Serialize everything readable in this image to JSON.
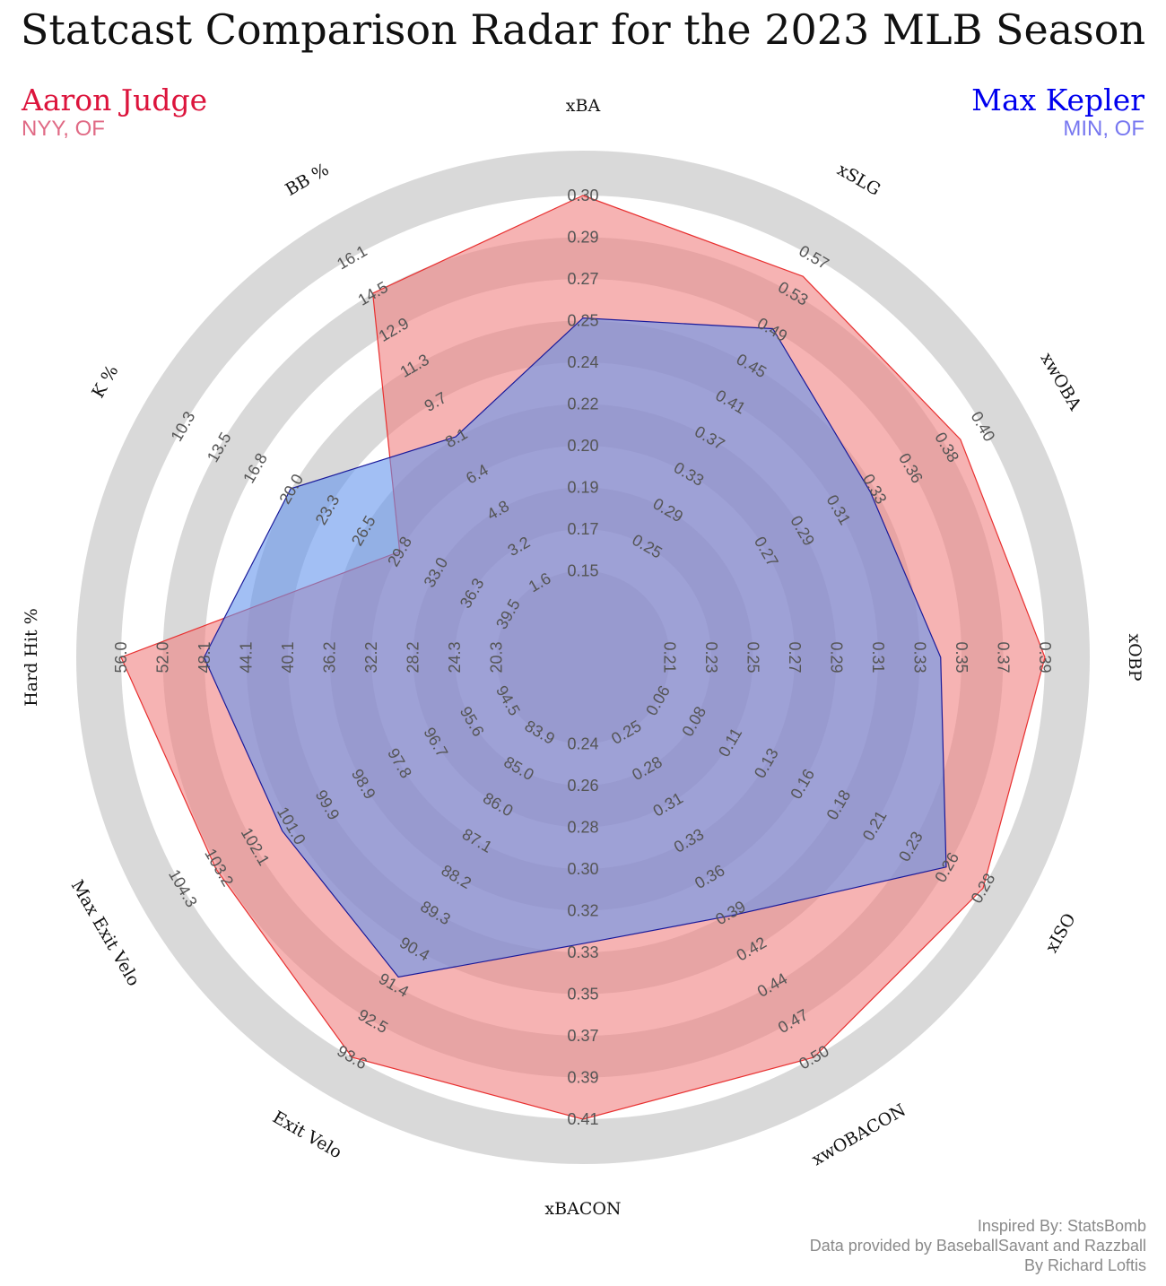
{
  "title": "Statcast Comparison Radar for the 2023 MLB Season",
  "players": {
    "left": {
      "name": "Aaron Judge",
      "team": "NYY, OF",
      "color": "#dc143c",
      "fill": "#f08080"
    },
    "right": {
      "name": "Max Kepler",
      "team": "MIN, OF",
      "color": "#0000ee",
      "fill": "#6495ed"
    }
  },
  "credits": [
    "Inspired By: StatsBomb",
    "Data provided by BaseballSavant and Razzball",
    "By Richard Loftis"
  ],
  "chart_data": {
    "type": "radar",
    "title": "Statcast Comparison Radar for the 2023 MLB Season",
    "axes": [
      {
        "name": "xBA",
        "ticks": [
          "0.15",
          "0.17",
          "0.19",
          "0.20",
          "0.22",
          "0.24",
          "0.25",
          "0.27",
          "0.29",
          "0.30"
        ],
        "range": [
          0.14,
          0.3
        ]
      },
      {
        "name": "xSLG",
        "ticks": [
          "0.25",
          "0.29",
          "0.33",
          "0.37",
          "0.41",
          "0.45",
          "0.49",
          "0.53",
          "0.57"
        ],
        "range": [
          0.21,
          0.59
        ]
      },
      {
        "name": "xwOBA",
        "ticks": [
          "0.27",
          "0.29",
          "0.31",
          "0.33",
          "0.36",
          "0.38",
          "0.40"
        ],
        "range": [
          0.25,
          0.41
        ]
      },
      {
        "name": "xOBP",
        "ticks": [
          "0.21",
          "0.23",
          "0.25",
          "0.27",
          "0.29",
          "0.31",
          "0.33",
          "0.35",
          "0.37",
          "0.39"
        ],
        "range": [
          0.19,
          0.39
        ]
      },
      {
        "name": "xISO",
        "ticks": [
          "0.06",
          "0.08",
          "0.11",
          "0.13",
          "0.16",
          "0.18",
          "0.21",
          "0.23",
          "0.26",
          "0.28"
        ],
        "range": [
          0.035,
          0.28
        ]
      },
      {
        "name": "xwOBACON",
        "ticks": [
          "0.25",
          "0.28",
          "0.31",
          "0.33",
          "0.36",
          "0.39",
          "0.42",
          "0.44",
          "0.47",
          "0.50"
        ],
        "range": [
          0.22,
          0.5
        ]
      },
      {
        "name": "xBACON",
        "ticks": [
          "0.24",
          "0.26",
          "0.28",
          "0.30",
          "0.32",
          "0.33",
          "0.35",
          "0.37",
          "0.39",
          "0.41"
        ],
        "range": [
          0.22,
          0.41
        ]
      },
      {
        "name": "Exit Velo",
        "ticks": [
          "83.9",
          "85.0",
          "86.0",
          "87.1",
          "88.2",
          "89.3",
          "90.4",
          "91.4",
          "92.5",
          "93.6"
        ],
        "range": [
          82.8,
          93.6
        ]
      },
      {
        "name": "Max Exit Velo",
        "ticks": [
          "94.5",
          "95.6",
          "96.7",
          "97.8",
          "98.9",
          "99.9",
          "101.0",
          "102.1",
          "103.2",
          "104.3"
        ],
        "range": [
          93.4,
          105.4
        ]
      },
      {
        "name": "Hard Hit %",
        "ticks": [
          "20.3",
          "24.3",
          "28.2",
          "32.2",
          "36.2",
          "40.1",
          "44.1",
          "48.1",
          "52.0",
          "56.0"
        ],
        "range": [
          16.3,
          56.0
        ]
      },
      {
        "name": "K %",
        "ticks": [
          "39.5",
          "36.3",
          "33.0",
          "29.8",
          "26.5",
          "23.3",
          "20.0",
          "16.8",
          "13.5",
          "10.3"
        ],
        "range": [
          42.8,
          10.3
        ]
      },
      {
        "name": "BB %",
        "ticks": [
          "1.6",
          "3.2",
          "4.8",
          "6.4",
          "8.1",
          "9.7",
          "11.3",
          "12.9",
          "14.5",
          "16.1"
        ],
        "range": [
          0.0,
          16.1
        ]
      }
    ],
    "series": [
      {
        "name": "Aaron Judge",
        "values": [
          0.3,
          0.57,
          0.4,
          0.39,
          0.28,
          0.5,
          0.41,
          93.6,
          104.3,
          56.0,
          29.8,
          14.5
        ]
      },
      {
        "name": "Max Kepler",
        "values": [
          0.253,
          0.515,
          0.36,
          0.34,
          0.255,
          0.39,
          0.33,
          91.2,
          102.1,
          48.1,
          20.0,
          8.1
        ]
      }
    ],
    "grid": true,
    "legend": "top-left and top-right"
  }
}
